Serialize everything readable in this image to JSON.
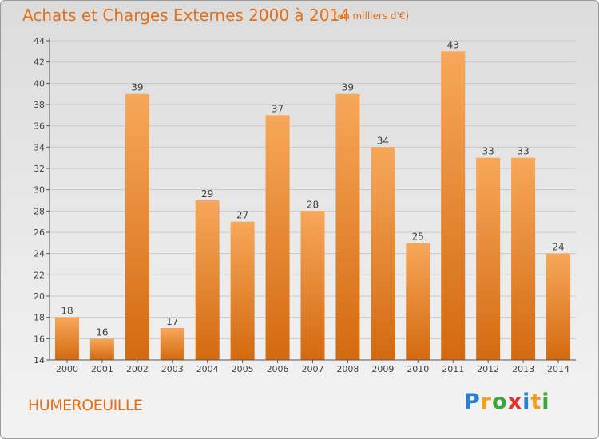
{
  "title": "Achats et Charges Externes 2000 à 2014",
  "subtitle": "(en milliers d'€)",
  "commune": "HUMEROEUILLE",
  "logo": {
    "letters": [
      {
        "ch": "P",
        "color": "#2a7fcf"
      },
      {
        "ch": "r",
        "color": "#f0a020"
      },
      {
        "ch": "o",
        "color": "#3aa63a"
      },
      {
        "ch": "x",
        "color": "#e03030"
      },
      {
        "ch": "i",
        "color": "#2a7fcf"
      },
      {
        "ch": "t",
        "color": "#f0a020"
      },
      {
        "ch": "i",
        "color": "#3aa63a"
      }
    ]
  },
  "colors": {
    "bar_top": "#f7a75a",
    "bar_bottom": "#d36a10",
    "text_accent": "#e0701a",
    "axis": "#555555",
    "grid": "#c8c8c8"
  },
  "chart_data": {
    "type": "bar",
    "categories": [
      "2000",
      "2001",
      "2002",
      "2003",
      "2004",
      "2005",
      "2006",
      "2007",
      "2008",
      "2009",
      "2010",
      "2011",
      "2012",
      "2013",
      "2014"
    ],
    "values": [
      18,
      16,
      39,
      17,
      29,
      27,
      37,
      28,
      39,
      34,
      25,
      43,
      33,
      33,
      24
    ],
    "data_labels": [
      "18",
      "16",
      "39",
      "17",
      "29",
      "27",
      "37",
      "28",
      "39",
      "34",
      "25",
      "43",
      "33",
      "33",
      "24"
    ],
    "yticks": [
      14,
      16,
      18,
      20,
      22,
      24,
      26,
      28,
      30,
      32,
      34,
      36,
      38,
      40,
      42,
      44
    ],
    "ylim": [
      14,
      44
    ],
    "grid": true
  }
}
